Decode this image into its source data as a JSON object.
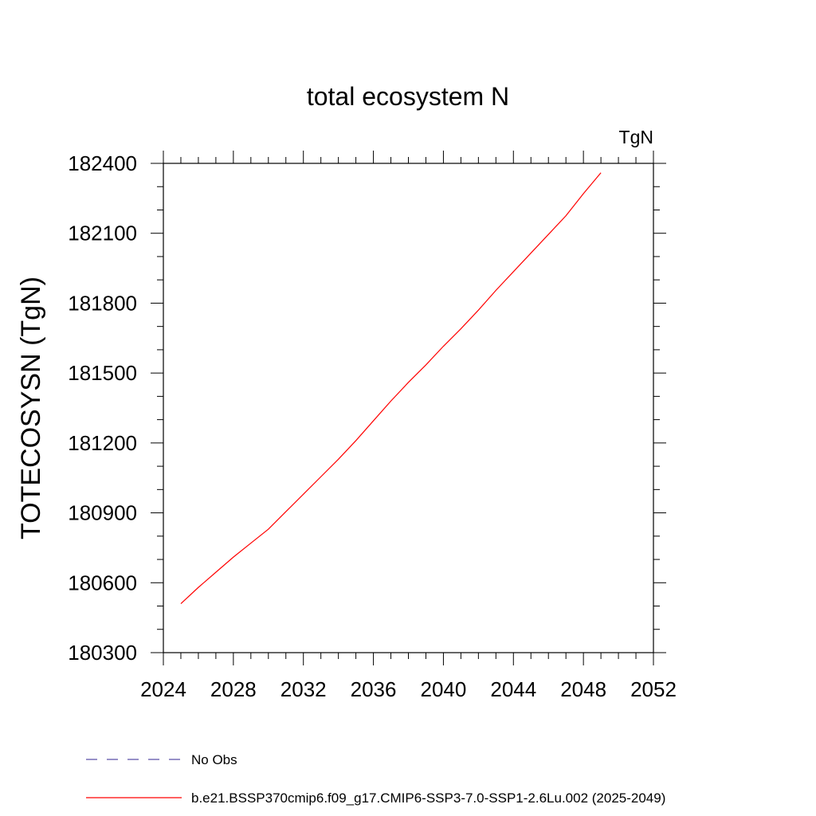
{
  "chart_data": {
    "type": "line",
    "title": "total ecosystem N",
    "units_label": "TgN",
    "xlabel": "",
    "ylabel": "TOTECOSYSN  (TgN)",
    "xlim": [
      2024,
      2052
    ],
    "ylim": [
      180300,
      182400
    ],
    "xticks": [
      2024,
      2028,
      2032,
      2036,
      2040,
      2044,
      2048,
      2052
    ],
    "yticks": [
      180300,
      180600,
      180900,
      181200,
      181500,
      181800,
      182100,
      182400
    ],
    "legend_position": "bottom",
    "grid": false,
    "series": [
      {
        "name": "No Obs",
        "color": "#5a4fa8",
        "dash": true,
        "x": [],
        "y": []
      },
      {
        "name": "b.e21.BSSP370cmip6.f09_g17.CMIP6-SSP3-7.0-SSP1-2.6Lu.002 (2025-2049)",
        "color": "#ff0000",
        "dash": false,
        "x": [
          2025,
          2026,
          2027,
          2028,
          2029,
          2030,
          2031,
          2032,
          2033,
          2034,
          2035,
          2036,
          2037,
          2038,
          2039,
          2040,
          2041,
          2042,
          2043,
          2044,
          2045,
          2046,
          2047,
          2048,
          2049
        ],
        "y": [
          180510,
          180580,
          180645,
          180710,
          180770,
          180830,
          180905,
          180980,
          181055,
          181130,
          181210,
          181295,
          181380,
          181460,
          181535,
          181615,
          181690,
          181770,
          181855,
          181935,
          182015,
          182095,
          182175,
          182270,
          182360
        ]
      }
    ]
  }
}
